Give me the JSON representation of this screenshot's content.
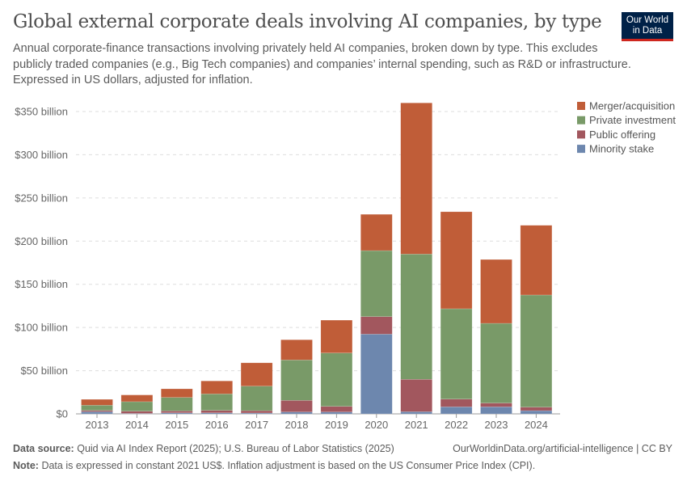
{
  "title": "Global external corporate deals involving AI companies, by type",
  "subtitle": "Annual corporate-finance transactions involving privately held AI companies, broken down by type. This excludes publicly traded companies (e.g., Big Tech companies) and companies’ internal spending, such as R&D or infrastructure. Expressed in US dollars, adjusted for inflation.",
  "logo": {
    "line1": "Our World",
    "line2": "in Data"
  },
  "footer": {
    "source_label": "Data source:",
    "source": "Quid via AI Index Report (2025); U.S. Bureau of Labor Statistics (2025)",
    "url": "OurWorldinData.org/artificial-intelligence | CC BY",
    "note_label": "Note:",
    "note": "Data is expressed in constant 2021 US$. Inflation adjustment is based on the US Consumer Price Index (CPI)."
  },
  "chart_data": {
    "type": "bar",
    "stacked": true,
    "categories": [
      "2013",
      "2014",
      "2015",
      "2016",
      "2017",
      "2018",
      "2019",
      "2020",
      "2021",
      "2022",
      "2023",
      "2024"
    ],
    "series": [
      {
        "name": "Minority stake",
        "color": "#6d87ae",
        "values": [
          2.5,
          0.5,
          1.2,
          1.2,
          1,
          2.2,
          2.2,
          92.3,
          2.5,
          8.1,
          8.1,
          3.7
        ]
      },
      {
        "name": "Public offering",
        "color": "#a2575e",
        "values": [
          1.5,
          2.6,
          2.2,
          2.8,
          2.7,
          13.4,
          6.5,
          20.3,
          37.5,
          9,
          4.4,
          4.1
        ]
      },
      {
        "name": "Private investment",
        "color": "#799a68",
        "values": [
          6,
          11,
          15.6,
          19.1,
          28.4,
          46.8,
          61.8,
          76.4,
          145,
          104.6,
          92.3,
          129.8
        ]
      },
      {
        "name": "Merger/acquisition",
        "color": "#c05d38",
        "values": [
          6.8,
          7.8,
          10,
          15,
          27,
          23.4,
          38,
          42,
          175,
          112.3,
          73.9,
          80.7
        ]
      }
    ],
    "legend_order": [
      "Merger/acquisition",
      "Private investment",
      "Public offering",
      "Minority stake"
    ],
    "yticks": [
      0,
      50,
      100,
      150,
      200,
      250,
      300,
      350
    ],
    "ytick_labels": [
      "$0",
      "$50 billion",
      "$100 billion",
      "$150 billion",
      "$200 billion",
      "$250 billion",
      "$300 billion",
      "$350 billion"
    ],
    "ylim": [
      0,
      350
    ],
    "unit": "billion US$",
    "grid": "horizontal dashed",
    "legend": "top-right"
  }
}
